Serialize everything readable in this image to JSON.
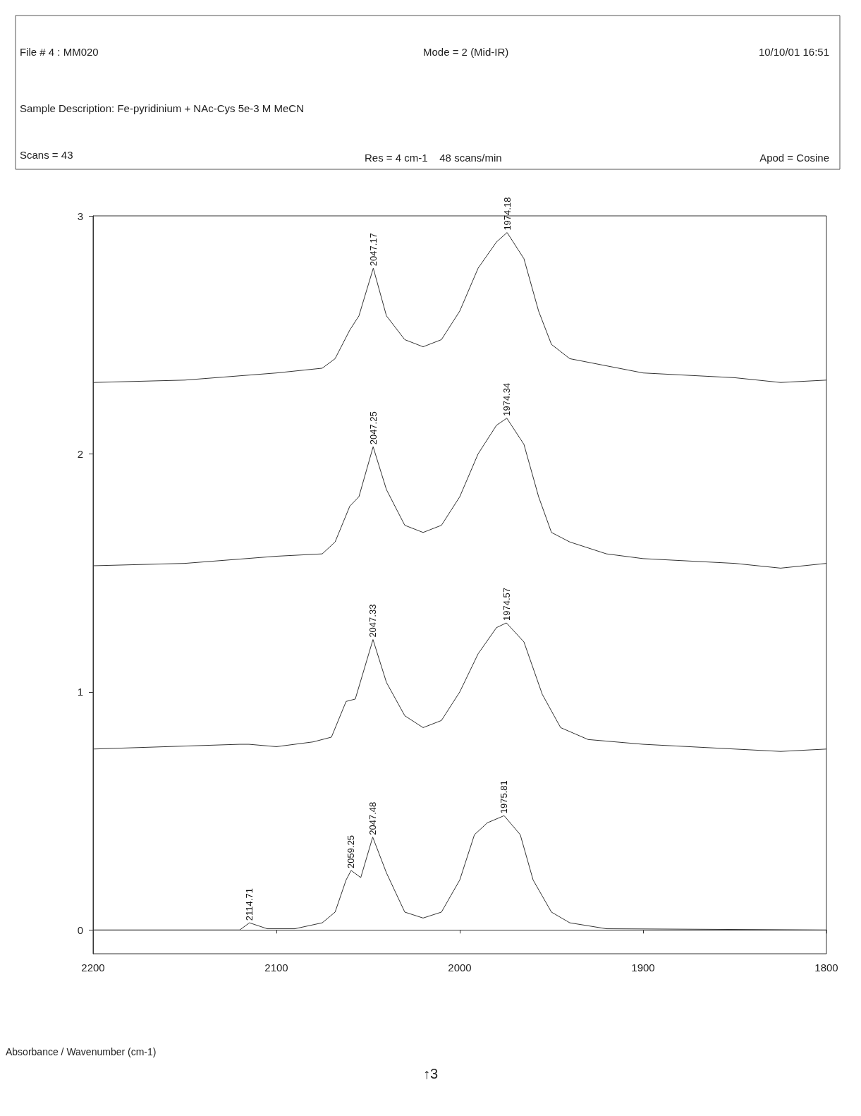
{
  "chart_data": {
    "type": "line",
    "annotations": [
      "File # 4 : MM020",
      "Mode = 2 (Mid-IR)",
      "10/10/01 16:51",
      "Sample Description: Fe-pyridinium + NAc-Cys 5e-3 M MeCN",
      "Scans = 43",
      "Res = 4 cm-1    48 scans/min",
      "Apod = Cosine",
      "Absorbance / Wavenumber (cm-1)",
      "↑3",
      {
        "text": "2047.17",
        "x": 2047.17,
        "y": 2.78
      },
      {
        "text": "1974.18",
        "x": 1974.18,
        "y": 2.93
      },
      {
        "text": "2047.25",
        "x": 2047.25,
        "y": 2.03
      },
      {
        "text": "1974.34",
        "x": 1974.34,
        "y": 2.15
      },
      {
        "text": "2047.33",
        "x": 2047.33,
        "y": 1.22
      },
      {
        "text": "1974.57",
        "x": 1974.57,
        "y": 1.29
      },
      {
        "text": "2114.71",
        "x": 2114.71,
        "y": 0.03
      },
      {
        "text": "2059.25",
        "x": 2059.25,
        "y": 0.25
      },
      {
        "text": "2047.48",
        "x": 2047.48,
        "y": 0.39
      },
      {
        "text": "1975.81",
        "x": 1975.81,
        "y": 0.48
      }
    ],
    "xlim": [
      2200,
      1800
    ],
    "xticks": [
      2200,
      2100,
      2000,
      1900,
      1800
    ],
    "ylim": [
      -0.1,
      3
    ],
    "yticks": [
      0,
      1,
      2,
      3
    ],
    "marker": "none",
    "line_style": "solid",
    "series": [
      {
        "color": "#333333",
        "x": [
          2200,
          2150,
          2100,
          2075,
          2068,
          2060,
          2055,
          2047.17,
          2040,
          2030,
          2020,
          2010,
          2000,
          1990,
          1980,
          1974.18,
          1965,
          1957,
          1950,
          1940,
          1920,
          1900,
          1850,
          1825,
          1800
        ],
        "values": [
          2.3,
          2.31,
          2.34,
          2.36,
          2.4,
          2.52,
          2.58,
          2.78,
          2.58,
          2.48,
          2.45,
          2.48,
          2.6,
          2.78,
          2.89,
          2.93,
          2.82,
          2.6,
          2.46,
          2.4,
          2.37,
          2.34,
          2.32,
          2.3,
          2.31
        ]
      },
      {
        "color": "#333333",
        "x": [
          2200,
          2150,
          2100,
          2075,
          2068,
          2060,
          2055,
          2047.25,
          2040,
          2030,
          2020,
          2010,
          2000,
          1990,
          1980,
          1974.34,
          1965,
          1957,
          1950,
          1940,
          1920,
          1900,
          1850,
          1825,
          1800
        ],
        "values": [
          1.53,
          1.54,
          1.57,
          1.58,
          1.63,
          1.78,
          1.82,
          2.03,
          1.85,
          1.7,
          1.67,
          1.7,
          1.82,
          2.0,
          2.12,
          2.15,
          2.04,
          1.82,
          1.67,
          1.63,
          1.58,
          1.56,
          1.54,
          1.52,
          1.54
        ]
      },
      {
        "color": "#333333",
        "x": [
          2200,
          2120,
          2115,
          2100,
          2080,
          2070,
          2062,
          2057,
          2047.33,
          2040,
          2030,
          2020,
          2010,
          2000,
          1990,
          1980,
          1974.57,
          1965,
          1955,
          1945,
          1930,
          1900,
          1850,
          1825,
          1800
        ],
        "values": [
          0.76,
          0.78,
          0.78,
          0.77,
          0.79,
          0.81,
          0.96,
          0.97,
          1.22,
          1.04,
          0.9,
          0.85,
          0.88,
          1.0,
          1.16,
          1.27,
          1.29,
          1.21,
          0.99,
          0.85,
          0.8,
          0.78,
          0.76,
          0.75,
          0.76
        ]
      },
      {
        "color": "#333333",
        "x": [
          2200,
          2120,
          2114.71,
          2105,
          2090,
          2075,
          2068,
          2062,
          2059.25,
          2054,
          2047.48,
          2040,
          2030,
          2020,
          2010,
          2000,
          1992,
          1985,
          1975.81,
          1967,
          1960,
          1950,
          1940,
          1920,
          1800
        ],
        "values": [
          0.0,
          0.0,
          0.03,
          0.005,
          0.005,
          0.03,
          0.075,
          0.21,
          0.25,
          0.22,
          0.39,
          0.24,
          0.075,
          0.05,
          0.075,
          0.21,
          0.4,
          0.45,
          0.48,
          0.4,
          0.21,
          0.075,
          0.03,
          0.005,
          0.0
        ]
      }
    ]
  }
}
